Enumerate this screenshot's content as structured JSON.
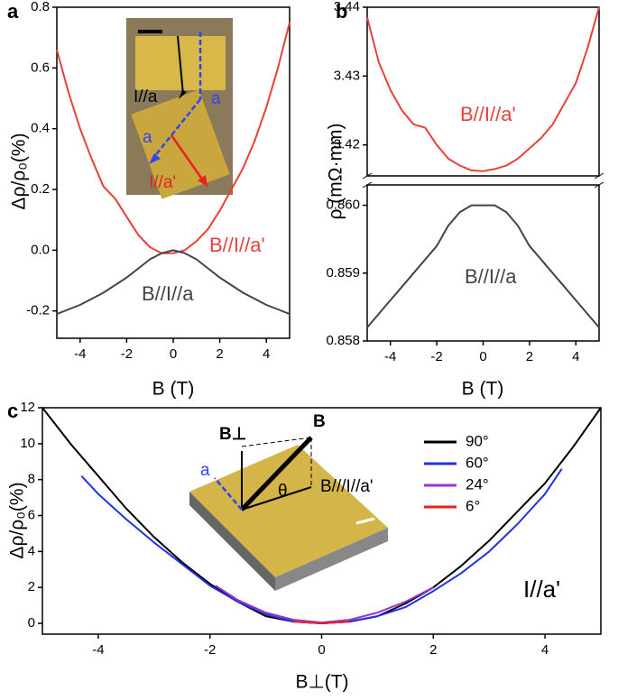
{
  "chart_data": [
    {
      "type": "line",
      "panel_label": "a",
      "xlabel": "B (T)",
      "ylabel": "Δρ/ρ₀(%)",
      "xlim": [
        -5,
        5
      ],
      "xticks": [
        -4,
        -2,
        0,
        2,
        4
      ],
      "ylim": [
        -0.29,
        0.8
      ],
      "yticks": [
        -0.2,
        {
          "value": 0,
          "label": "0.0"
        },
        0.2,
        0.4,
        0.6,
        0.8
      ],
      "x": [
        -5,
        -4.5,
        -4,
        -3.5,
        -3,
        -2.5,
        -2,
        -1.5,
        -1,
        -0.5,
        0,
        0.5,
        1,
        1.5,
        2,
        2.5,
        3,
        3.5,
        4,
        4.5,
        5
      ],
      "series": [
        {
          "name": "B//I//a'",
          "color": "#e8413c",
          "values": [
            0.66,
            0.52,
            0.4,
            0.3,
            0.21,
            0.17,
            0.11,
            0.05,
            0.01,
            -0.01,
            -0.01,
            0.0,
            0.03,
            0.07,
            0.13,
            0.2,
            0.27,
            0.36,
            0.47,
            0.6,
            0.75
          ]
        },
        {
          "name": "B//I//a",
          "color": "#444444",
          "values": [
            -0.21,
            -0.195,
            -0.18,
            -0.16,
            -0.14,
            -0.115,
            -0.09,
            -0.06,
            -0.03,
            -0.01,
            0.0,
            -0.01,
            -0.03,
            -0.06,
            -0.09,
            -0.115,
            -0.14,
            -0.16,
            -0.18,
            -0.195,
            -0.21
          ]
        }
      ],
      "inset_labels": [
        "I//a",
        "a",
        "a",
        "I//a'"
      ]
    },
    {
      "type": "line",
      "panel_label": "b",
      "xlabel": "B (T)",
      "ylabel": "ρ (mΩ·mm)",
      "xlim": [
        -5,
        5
      ],
      "xticks": [
        -4,
        -2,
        0,
        2,
        4
      ],
      "ylim": [
        0.858,
        0.8603
      ],
      "yticks": [
        0.858,
        0.859,
        {
          "value": 0.86,
          "label": "0.860"
        }
      ],
      "ylim_upper": [
        3.4155,
        3.44
      ],
      "yticks_upper": [
        3.42,
        3.43,
        3.44
      ],
      "x": [
        -5,
        -4.5,
        -4,
        -3.5,
        -3,
        -2.5,
        -2,
        -1.5,
        -1,
        -0.5,
        0,
        0.5,
        1,
        1.5,
        2,
        2.5,
        3,
        3.5,
        4,
        4.5,
        5
      ],
      "series": [
        {
          "name": "B//I//a'",
          "color": "#e8413c",
          "axis": "upper",
          "values": [
            3.4385,
            3.432,
            3.428,
            3.425,
            3.423,
            3.4225,
            3.42,
            3.418,
            3.417,
            3.4163,
            3.4162,
            3.4165,
            3.417,
            3.418,
            3.4195,
            3.421,
            3.423,
            3.426,
            3.429,
            3.434,
            3.44
          ]
        },
        {
          "name": "B//I//a",
          "color": "#444444",
          "values": [
            0.8582,
            0.8584,
            0.8586,
            0.8588,
            0.859,
            0.8592,
            0.8594,
            0.8597,
            0.8599,
            0.86,
            0.86,
            0.86,
            0.8599,
            0.8597,
            0.8594,
            0.8592,
            0.859,
            0.8588,
            0.8586,
            0.8584,
            0.8582
          ]
        }
      ]
    },
    {
      "type": "line",
      "panel_label": "c",
      "xlabel": "B⊥(T)",
      "ylabel": "Δρ/ρ₀(%)",
      "xlim": [
        -5,
        5
      ],
      "xticks": [
        -4,
        -2,
        0,
        2,
        4
      ],
      "ylim": [
        -0.6,
        12
      ],
      "yticks": [
        0,
        2,
        4,
        6,
        8,
        10,
        12
      ],
      "legend": "upper right",
      "annotation": "I//a'",
      "series": [
        {
          "name": "90°",
          "color": "#000000",
          "x": [
            -5,
            -4.5,
            -4,
            -3.5,
            -3,
            -2.5,
            -2,
            -1.5,
            -1,
            -0.5,
            0,
            0.5,
            1,
            1.5,
            2,
            2.5,
            3,
            3.5,
            4,
            4.5,
            5
          ],
          "values": [
            12,
            10,
            8.2,
            6.4,
            4.8,
            3.4,
            2.2,
            1.2,
            0.4,
            0.1,
            0.0,
            0.1,
            0.4,
            1.1,
            2.0,
            3.2,
            4.6,
            6.2,
            7.8,
            9.8,
            12
          ]
        },
        {
          "name": "60°",
          "color": "#2233dd",
          "x": [
            -4.3,
            -4,
            -3.5,
            -3,
            -2.5,
            -2,
            -1.5,
            -1,
            -0.5,
            0,
            0.5,
            1,
            1.5,
            2,
            2.5,
            3,
            3.5,
            4,
            4.3
          ],
          "values": [
            8.2,
            7.2,
            5.8,
            4.5,
            3.3,
            2.1,
            1.2,
            0.5,
            0.1,
            0,
            0.1,
            0.4,
            0.9,
            1.8,
            2.8,
            4.0,
            5.5,
            7.2,
            8.6
          ]
        },
        {
          "name": "24°",
          "color": "#9933cc",
          "x": [
            -1.9,
            -1.5,
            -1,
            -0.5,
            0,
            0.5,
            1,
            1.5,
            2
          ],
          "values": [
            2.1,
            1.3,
            0.6,
            0.2,
            0.05,
            0.2,
            0.6,
            1.2,
            2.0
          ]
        },
        {
          "name": "6°",
          "color": "#ee2222",
          "x": [
            -0.5,
            -0.25,
            0,
            0.25,
            0.5
          ],
          "values": [
            0.1,
            0.05,
            0,
            0.05,
            0.1
          ]
        }
      ],
      "inset_labels": [
        "B⊥",
        "B",
        "θ",
        "B///I//a'",
        "a"
      ]
    }
  ]
}
